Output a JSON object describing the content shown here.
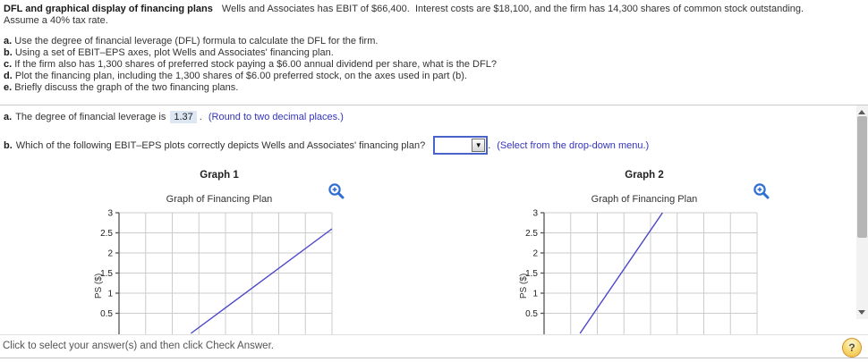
{
  "colors": {
    "accent_blue_text": "#3434bb",
    "highlight_bg": "#dde6f3",
    "chart_line": "#4a46c8",
    "chart_grid": "#cccccc",
    "chart_axis": "#555555",
    "zoom_icon_blue": "#2f6fd2"
  },
  "problem": {
    "title": "DFL and graphical display of financing plans",
    "statement_1": "Wells and Associates has EBIT of $66,400.  Interest costs are $18,100, and the firm has 14,300 shares of common stock outstanding.",
    "statement_2": "Assume a 40% tax rate.",
    "tasks": [
      {
        "prefix": "a.",
        "text": "Use the degree of financial leverage (DFL) formula to calculate the DFL for the firm."
      },
      {
        "prefix": "b.",
        "text": "Using a set of EBIT–EPS axes, plot Wells and Associates' financing plan."
      },
      {
        "prefix": "c.",
        "text": "If the firm also has 1,300 shares of preferred stock paying a $6.00 annual dividend per share, what is the DFL?"
      },
      {
        "prefix": "d.",
        "text": "Plot the financing plan, including the 1,300 shares of $6.00 preferred stock, on the axes used in part (b)."
      },
      {
        "prefix": "e.",
        "text": "Briefly discuss the graph of the two financing plans."
      }
    ]
  },
  "answers": {
    "part_a": {
      "prefix": "a.",
      "text_before": "The degree of financial leverage is",
      "value": "1.37",
      "period": ".",
      "hint": "(Round to two decimal places.)"
    },
    "part_b": {
      "prefix": "b.",
      "question": "Which of the following EBIT–EPS plots correctly depicts Wells and Associates' financing plan?",
      "dropdown_value": "",
      "period": ".",
      "hint": "(Select from the drop-down menu.)"
    }
  },
  "icons": {
    "dropdown_arrow": "▼"
  },
  "chart_data": [
    {
      "type": "line",
      "name": "Graph 1",
      "title": "Graph of Financing Plan",
      "ylabel": "PS ($)",
      "yticks": [
        3,
        2.5,
        2,
        1.5,
        1,
        0.5
      ],
      "ylim_visible": [
        0,
        3
      ],
      "grid": true,
      "grid_columns": 8,
      "series": [
        {
          "name": "financing-plan-line",
          "points_gridcol_eps": [
            [
              2.7,
              0.0
            ],
            [
              8.0,
              2.6
            ]
          ]
        }
      ]
    },
    {
      "type": "line",
      "name": "Graph 2",
      "title": "Graph of Financing Plan",
      "ylabel": "PS ($)",
      "yticks": [
        3,
        2.5,
        2,
        1.5,
        1,
        0.5
      ],
      "ylim_visible": [
        0,
        3
      ],
      "grid": true,
      "grid_columns": 8,
      "series": [
        {
          "name": "financing-plan-line",
          "points_gridcol_eps": [
            [
              1.35,
              0.0
            ],
            [
              4.45,
              3.0
            ]
          ]
        }
      ]
    }
  ],
  "footer": {
    "instruction": "Click to select your answer(s) and then click Check Answer.",
    "help_label": "?"
  }
}
